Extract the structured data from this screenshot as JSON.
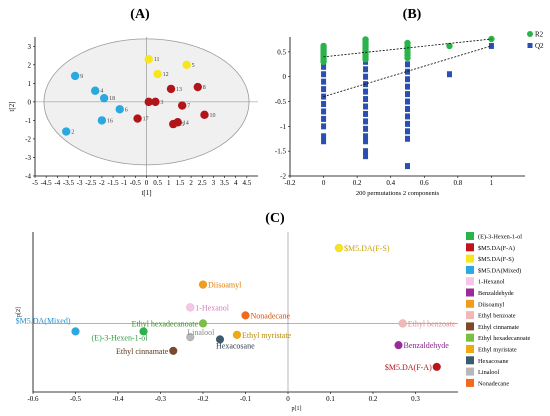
{
  "chart_data": [
    {
      "panel": "(A)",
      "type": "scatter",
      "xlabel": "t[1]",
      "ylabel": "t[2]",
      "xlim": [
        -5,
        5
      ],
      "ylim": [
        -4,
        3.5
      ],
      "xticks": [
        -5,
        -4.5,
        -4,
        -3.5,
        -3,
        -2.5,
        -2,
        -1.5,
        -1,
        -0.5,
        0,
        0.5,
        1,
        1.5,
        2,
        2.5,
        3,
        3.5,
        4,
        4.5
      ],
      "yticks": [
        -4,
        -3,
        -2,
        -1,
        0,
        1,
        2,
        3
      ],
      "colors": {
        "blue": "#2aa8e0",
        "yellow": "#f5e61e",
        "red": "#b3141a"
      },
      "points": [
        {
          "label": "9",
          "group": "blue",
          "x": -3.2,
          "y": 1.4
        },
        {
          "label": "4",
          "group": "blue",
          "x": -2.3,
          "y": 0.6
        },
        {
          "label": "18",
          "group": "blue",
          "x": -1.9,
          "y": 0.2
        },
        {
          "label": "6",
          "group": "blue",
          "x": -1.2,
          "y": -0.4
        },
        {
          "label": "16",
          "group": "blue",
          "x": -2.0,
          "y": -1.0
        },
        {
          "label": "2",
          "group": "blue",
          "x": -3.6,
          "y": -1.6
        },
        {
          "label": "11",
          "group": "yellow",
          "x": 0.1,
          "y": 2.3
        },
        {
          "label": "12",
          "group": "yellow",
          "x": 0.5,
          "y": 1.5
        },
        {
          "label": "5",
          "group": "yellow",
          "x": 1.8,
          "y": 2.0
        },
        {
          "label": "13",
          "group": "red",
          "x": 1.1,
          "y": 0.7
        },
        {
          "label": "8",
          "group": "red",
          "x": 2.3,
          "y": 0.8
        },
        {
          "label": "1",
          "group": "red",
          "x": 0.1,
          "y": 0.0
        },
        {
          "label": "3",
          "group": "red",
          "x": 0.4,
          "y": 0.0
        },
        {
          "label": "7",
          "group": "red",
          "x": 1.6,
          "y": -0.2
        },
        {
          "label": "10",
          "group": "red",
          "x": 2.6,
          "y": -0.7
        },
        {
          "label": "14",
          "group": "red",
          "x": 1.4,
          "y": -1.1
        },
        {
          "label": "15",
          "group": "red",
          "x": 1.2,
          "y": -1.2
        },
        {
          "label": "17",
          "group": "red",
          "x": -0.4,
          "y": -0.9
        }
      ]
    },
    {
      "panel": "(B)",
      "type": "scatter",
      "xlabel": "200 permutations 2 components",
      "xlim": [
        -0.2,
        1.2
      ],
      "ylim": [
        -2,
        0.8
      ],
      "xticks": [
        -0.2,
        0,
        0.2,
        0.4,
        0.6,
        0.8,
        1
      ],
      "yticks": [
        -2,
        -1.5,
        -1,
        -0.5,
        0,
        0.5
      ],
      "legend": [
        {
          "name": "R2",
          "color": "#2ab24b"
        },
        {
          "name": "Q2",
          "color": "#2a4fb0"
        }
      ],
      "r2_points": [
        {
          "x": 0,
          "y": 0.62
        },
        {
          "x": 0,
          "y": 0.58
        },
        {
          "x": 0,
          "y": 0.54
        },
        {
          "x": 0,
          "y": 0.5
        },
        {
          "x": 0,
          "y": 0.46
        },
        {
          "x": 0,
          "y": 0.42
        },
        {
          "x": 0,
          "y": 0.38
        },
        {
          "x": 0,
          "y": 0.34
        },
        {
          "x": 0,
          "y": 0.3
        },
        {
          "x": 0.25,
          "y": 0.75
        },
        {
          "x": 0.25,
          "y": 0.7
        },
        {
          "x": 0.25,
          "y": 0.65
        },
        {
          "x": 0.25,
          "y": 0.6
        },
        {
          "x": 0.25,
          "y": 0.55
        },
        {
          "x": 0.25,
          "y": 0.5
        },
        {
          "x": 0.25,
          "y": 0.45
        },
        {
          "x": 0.25,
          "y": 0.4
        },
        {
          "x": 0.25,
          "y": 0.35
        },
        {
          "x": 0.5,
          "y": 0.68
        },
        {
          "x": 0.5,
          "y": 0.62
        },
        {
          "x": 0.5,
          "y": 0.56
        },
        {
          "x": 0.5,
          "y": 0.5
        },
        {
          "x": 0.5,
          "y": 0.44
        },
        {
          "x": 0.5,
          "y": 0.38
        },
        {
          "x": 0.75,
          "y": 0.62
        },
        {
          "x": 1,
          "y": 0.76
        }
      ],
      "q2_points": [
        {
          "x": 0,
          "y": 0.35
        },
        {
          "x": 0,
          "y": 0.2
        },
        {
          "x": 0,
          "y": 0.05
        },
        {
          "x": 0,
          "y": -0.1
        },
        {
          "x": 0,
          "y": -0.25
        },
        {
          "x": 0,
          "y": -0.4
        },
        {
          "x": 0,
          "y": -0.55
        },
        {
          "x": 0,
          "y": -0.7
        },
        {
          "x": 0,
          "y": -0.85
        },
        {
          "x": 0,
          "y": -1.0
        },
        {
          "x": 0,
          "y": -1.2
        },
        {
          "x": 0,
          "y": -1.3
        },
        {
          "x": 0.25,
          "y": 0.45
        },
        {
          "x": 0.25,
          "y": 0.3
        },
        {
          "x": 0.25,
          "y": 0.15
        },
        {
          "x": 0.25,
          "y": 0.0
        },
        {
          "x": 0.25,
          "y": -0.15
        },
        {
          "x": 0.25,
          "y": -0.3
        },
        {
          "x": 0.25,
          "y": -0.45
        },
        {
          "x": 0.25,
          "y": -0.6
        },
        {
          "x": 0.25,
          "y": -0.75
        },
        {
          "x": 0.25,
          "y": -0.9
        },
        {
          "x": 0.25,
          "y": -1.05
        },
        {
          "x": 0.25,
          "y": -1.2
        },
        {
          "x": 0.25,
          "y": -1.3
        },
        {
          "x": 0.25,
          "y": -1.5
        },
        {
          "x": 0.25,
          "y": -1.6
        },
        {
          "x": 0.5,
          "y": 0.4
        },
        {
          "x": 0.5,
          "y": 0.25
        },
        {
          "x": 0.5,
          "y": 0.1
        },
        {
          "x": 0.5,
          "y": -0.05
        },
        {
          "x": 0.5,
          "y": -0.2
        },
        {
          "x": 0.5,
          "y": -0.35
        },
        {
          "x": 0.5,
          "y": -0.5
        },
        {
          "x": 0.5,
          "y": -0.65
        },
        {
          "x": 0.5,
          "y": -0.8
        },
        {
          "x": 0.5,
          "y": -0.95
        },
        {
          "x": 0.5,
          "y": -1.1
        },
        {
          "x": 0.5,
          "y": -1.25
        },
        {
          "x": 0.5,
          "y": -1.8
        },
        {
          "x": 0.75,
          "y": 0.05
        },
        {
          "x": 1,
          "y": 0.62
        }
      ],
      "r2_line": [
        [
          0,
          0.4
        ],
        [
          1,
          0.76
        ]
      ],
      "q2_line": [
        [
          0,
          -0.4
        ],
        [
          1,
          0.62
        ]
      ]
    },
    {
      "panel": "(C)",
      "type": "scatter",
      "xlabel": "p[1]",
      "ylabel": "p[2]",
      "xlim": [
        -0.6,
        0.4
      ],
      "ylim": [
        -0.6,
        0.8
      ],
      "xticks": [
        -0.6,
        -0.5,
        -0.4,
        -0.3,
        -0.2,
        -0.1,
        0,
        0.1,
        0.2,
        0.3
      ],
      "points": [
        {
          "name": "$M5.DA(F-S)",
          "x": 0.12,
          "y": 0.66,
          "color": "#f5e61e",
          "label_pos": "right",
          "label_color": "#c9a300"
        },
        {
          "name": "Diisoamyl",
          "x": -0.2,
          "y": 0.34,
          "color": "#f39c1a",
          "label_pos": "right",
          "label_color": "#e07b00"
        },
        {
          "name": "1-Hexanol",
          "x": -0.23,
          "y": 0.14,
          "color": "#f5c6e6",
          "label_pos": "right",
          "label_color": "#d17fb8"
        },
        {
          "name": "Nonadecane",
          "x": -0.1,
          "y": 0.07,
          "color": "#f26a1b",
          "label_pos": "right",
          "label_color": "#d2500a"
        },
        {
          "name": "Ethyl benzoate",
          "x": 0.27,
          "y": 0.0,
          "color": "#f2b8b8",
          "label_pos": "right",
          "label_color": "#d99090"
        },
        {
          "name": "$M5.DA(Mixed)",
          "x": -0.5,
          "y": -0.07,
          "color": "#2aa8e0",
          "label_pos": "left-above",
          "label_color": "#1f8fcc"
        },
        {
          "name": "Ethyl hexadecanoate",
          "x": -0.2,
          "y": 0.0,
          "color": "#7ac043",
          "label_pos": "left",
          "label_color": "#3c8d26"
        },
        {
          "name": "(E)-3-Hexen-1-ol",
          "x": -0.34,
          "y": -0.07,
          "color": "#2ab24b",
          "label_pos": "below-left",
          "label_color": "#2a9d3c"
        },
        {
          "name": "Linalool",
          "x": -0.23,
          "y": -0.12,
          "color": "#b8b8b8",
          "label_pos": "right-above",
          "label_color": "#888888"
        },
        {
          "name": "Ethyl myristate",
          "x": -0.12,
          "y": -0.1,
          "color": "#f2a90f",
          "label_pos": "right",
          "label_color": "#b88a00"
        },
        {
          "name": "Hexacosane",
          "x": -0.16,
          "y": -0.14,
          "color": "#3c5a6e",
          "label_pos": "below",
          "label_color": "#2a3a48"
        },
        {
          "name": "Ethyl cinnamate",
          "x": -0.27,
          "y": -0.24,
          "color": "#7a4a2a",
          "label_pos": "left",
          "label_color": "#5a3418"
        },
        {
          "name": "Benzaldehyde",
          "x": 0.26,
          "y": -0.19,
          "color": "#9b2a9b",
          "label_pos": "right",
          "label_color": "#8a238a"
        },
        {
          "name": "$M5.DA(F-A)",
          "x": 0.35,
          "y": -0.38,
          "color": "#c0141a",
          "label_pos": "left",
          "label_color": "#b3141a"
        }
      ],
      "legend": [
        {
          "name": "(E)-3-Hexen-1-ol",
          "color": "#2ab24b"
        },
        {
          "name": "$M5.DA(F-A)",
          "color": "#c0141a"
        },
        {
          "name": "$M5.DA(F-S)",
          "color": "#f5e61e"
        },
        {
          "name": "$M5.DA(Mixed)",
          "color": "#2aa8e0"
        },
        {
          "name": "1-Hexanol",
          "color": "#f5c6e6"
        },
        {
          "name": "Benzaldehyde",
          "color": "#9b2a9b"
        },
        {
          "name": "Diisoamyl",
          "color": "#f39c1a"
        },
        {
          "name": "Ethyl benzoate",
          "color": "#f2b8b8"
        },
        {
          "name": "Ethyl cinnamate",
          "color": "#7a4a2a"
        },
        {
          "name": "Ethyl hexadecanoate",
          "color": "#7ac043"
        },
        {
          "name": "Ethyl myristate",
          "color": "#f2a90f"
        },
        {
          "name": "Hexacosane",
          "color": "#3c5a6e"
        },
        {
          "name": "Linalool",
          "color": "#b8b8b8"
        },
        {
          "name": "Nonadecane",
          "color": "#f26a1b"
        }
      ]
    }
  ]
}
